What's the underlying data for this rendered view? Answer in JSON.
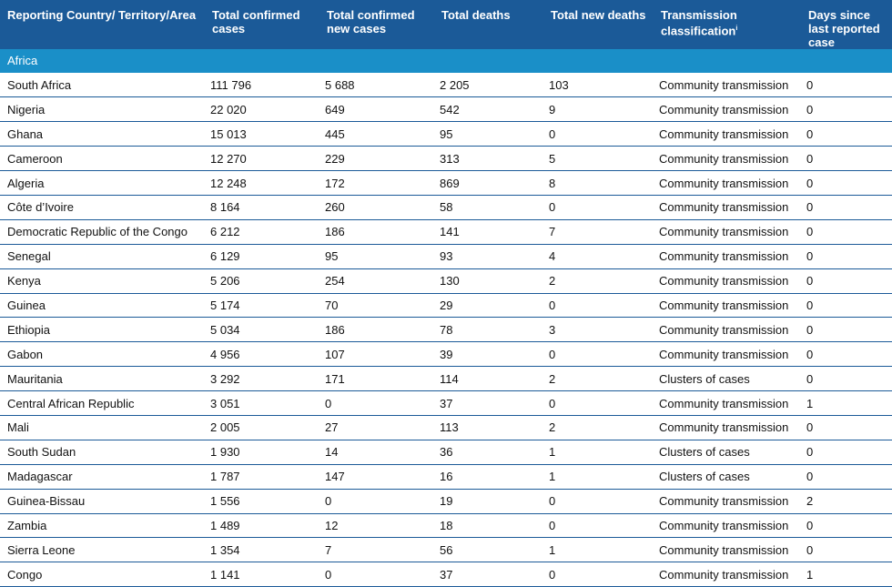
{
  "headers": [
    "Reporting Country/ Territory/Area",
    "Total confirmed cases",
    "Total confirmed new cases",
    "Total deaths",
    "Total new deaths",
    "Transmission classification",
    "Days since last reported case"
  ],
  "transmission_footnote": "i",
  "region": "Africa",
  "rows": [
    [
      "South Africa",
      "111 796",
      "5 688",
      "2 205",
      "103",
      "Community transmission",
      "0"
    ],
    [
      "Nigeria",
      "22 020",
      "649",
      "542",
      "9",
      "Community transmission",
      "0"
    ],
    [
      "Ghana",
      "15 013",
      "445",
      "95",
      "0",
      "Community transmission",
      "0"
    ],
    [
      "Cameroon",
      "12 270",
      "229",
      "313",
      "5",
      "Community transmission",
      "0"
    ],
    [
      "Algeria",
      "12 248",
      "172",
      "869",
      "8",
      "Community transmission",
      "0"
    ],
    [
      "Côte d’Ivoire",
      "8 164",
      "260",
      "58",
      "0",
      "Community transmission",
      "0"
    ],
    [
      "Democratic Republic of the Congo",
      "6 212",
      "186",
      "141",
      "7",
      "Community transmission",
      "0"
    ],
    [
      "Senegal",
      "6 129",
      "95",
      "93",
      "4",
      "Community transmission",
      "0"
    ],
    [
      "Kenya",
      "5 206",
      "254",
      "130",
      "2",
      "Community transmission",
      "0"
    ],
    [
      "Guinea",
      "5 174",
      "70",
      "29",
      "0",
      "Community transmission",
      "0"
    ],
    [
      "Ethiopia",
      "5 034",
      "186",
      "78",
      "3",
      "Community transmission",
      "0"
    ],
    [
      "Gabon",
      "4 956",
      "107",
      "39",
      "0",
      "Community transmission",
      "0"
    ],
    [
      "Mauritania",
      "3 292",
      "171",
      "114",
      "2",
      "Clusters of cases",
      "0"
    ],
    [
      "Central African Republic",
      "3 051",
      "0",
      "37",
      "0",
      "Community transmission",
      "1"
    ],
    [
      "Mali",
      "2 005",
      "27",
      "113",
      "2",
      "Community transmission",
      "0"
    ],
    [
      "South Sudan",
      "1 930",
      "14",
      "36",
      "1",
      "Clusters of cases",
      "0"
    ],
    [
      "Madagascar",
      "1 787",
      "147",
      "16",
      "1",
      "Clusters of cases",
      "0"
    ],
    [
      "Guinea-Bissau",
      "1 556",
      "0",
      "19",
      "0",
      "Community transmission",
      "2"
    ],
    [
      "Zambia",
      "1 489",
      "12",
      "18",
      "0",
      "Community transmission",
      "0"
    ],
    [
      "Sierra Leone",
      "1 354",
      "7",
      "56",
      "1",
      "Community transmission",
      "0"
    ],
    [
      "Congo",
      "1 141",
      "0",
      "37",
      "0",
      "Community transmission",
      "1"
    ]
  ],
  "colors": {
    "header_bg": "#1b5a98",
    "region_bg": "#1a8fc8",
    "rule": "#1b5a98"
  }
}
